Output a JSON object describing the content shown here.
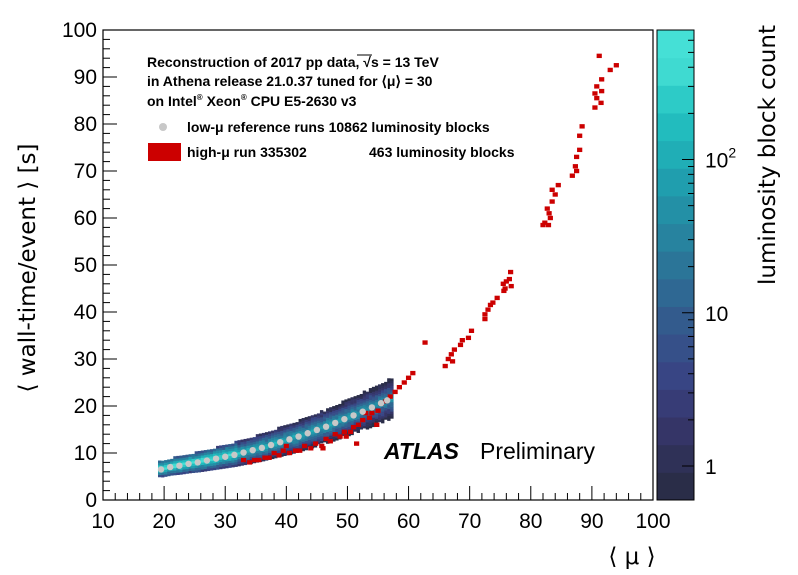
{
  "chart_data": {
    "type": "scatter",
    "title": "",
    "xlabel": "⟨ μ ⟩",
    "ylabel": "⟨ wall-time/event ⟩ [s]",
    "xlim": [
      10,
      100
    ],
    "ylim": [
      0,
      100
    ],
    "x_ticks": [
      "10",
      "20",
      "30",
      "40",
      "50",
      "60",
      "70",
      "80",
      "90",
      "100"
    ],
    "y_ticks": [
      "0",
      "10",
      "20",
      "30",
      "40",
      "50",
      "60",
      "70",
      "80",
      "90",
      "100"
    ],
    "colorbar": {
      "label": "luminosity block count",
      "scale": "log",
      "range": [
        0.6,
        700
      ],
      "tick_labels": [
        {
          "value": 1,
          "text": "1"
        },
        {
          "value": 10,
          "text": "10"
        },
        {
          "value": 100,
          "text": "10",
          "sup": "2"
        }
      ]
    },
    "annotations": {
      "line1_prefix": "Reconstruction of 2017 pp data, ",
      "line1_sqrt": "√s",
      "line1_suffix": " = 13 TeV",
      "line2": "in Athena release 21.0.37 tuned for ⟨μ⟩ = 30",
      "line3_a": "on Intel",
      "line3_reg1": "®",
      "line3_b": " Xeon",
      "line3_reg2": "®",
      "line3_c": " CPU E5-2630 v3",
      "atlas": "ATLAS",
      "preliminary": "Preliminary"
    },
    "legend": [
      {
        "name": "low-μ reference runs",
        "text": "low-μ reference runs 10862 luminosity blocks",
        "marker": "circle",
        "color": "#c8c8c8"
      },
      {
        "name": "high-μ run 335302",
        "text_a": "high-μ run 335302",
        "text_b": "463 luminosity blocks",
        "marker": "box",
        "color": "#cc0000"
      }
    ],
    "series": [
      {
        "name": "high-μ run 335302",
        "color": "#cc0000",
        "points": [
          [
            94.0,
            92.5
          ],
          [
            93.0,
            91.5
          ],
          [
            91.2,
            94.5
          ],
          [
            91.6,
            89.5
          ],
          [
            90.8,
            88.0
          ],
          [
            91.6,
            87.0
          ],
          [
            90.5,
            86.5
          ],
          [
            90.8,
            85.5
          ],
          [
            91.5,
            84.5
          ],
          [
            90.5,
            83.5
          ],
          [
            88.4,
            79.5
          ],
          [
            88.0,
            77.5
          ],
          [
            88.0,
            74.5
          ],
          [
            87.5,
            73.0
          ],
          [
            87.3,
            71.0
          ],
          [
            87.5,
            70.0
          ],
          [
            86.8,
            69.0
          ],
          [
            84.5,
            67.0
          ],
          [
            83.5,
            66.0
          ],
          [
            84.0,
            65.0
          ],
          [
            83.5,
            63.5
          ],
          [
            82.7,
            62.0
          ],
          [
            83.0,
            61.0
          ],
          [
            83.2,
            60.0
          ],
          [
            82.3,
            59.0
          ],
          [
            82.9,
            58.5
          ],
          [
            82.0,
            58.5
          ],
          [
            76.7,
            48.5
          ],
          [
            76.5,
            47.0
          ],
          [
            76.0,
            46.5
          ],
          [
            76.8,
            45.5
          ],
          [
            75.5,
            46.0
          ],
          [
            75.8,
            45.0
          ],
          [
            75.6,
            44.5
          ],
          [
            74.5,
            43.0
          ],
          [
            73.8,
            42.0
          ],
          [
            73.4,
            41.5
          ],
          [
            73.0,
            40.5
          ],
          [
            72.5,
            39.5
          ],
          [
            72.5,
            38.5
          ],
          [
            70.3,
            36.0
          ],
          [
            69.8,
            34.5
          ],
          [
            68.8,
            34.0
          ],
          [
            68.5,
            33.0
          ],
          [
            67.5,
            32.0
          ],
          [
            67.0,
            31.0
          ],
          [
            66.5,
            30.0
          ],
          [
            67.2,
            29.5
          ],
          [
            66.0,
            28.5
          ],
          [
            62.7,
            33.5
          ],
          [
            60.7,
            27.0
          ],
          [
            60.0,
            26.0
          ],
          [
            59.3,
            25.0
          ],
          [
            58.5,
            24.0
          ],
          [
            57.8,
            23.0
          ],
          [
            57.0,
            22.0
          ],
          [
            56.3,
            21.0
          ],
          [
            55.5,
            20.5
          ],
          [
            55.0,
            19.0
          ],
          [
            54.0,
            18.5
          ],
          [
            53.6,
            17.5
          ],
          [
            53.0,
            18.5
          ],
          [
            52.5,
            17.0
          ],
          [
            51.8,
            16.0
          ],
          [
            51.0,
            15.5
          ],
          [
            50.5,
            14.5
          ],
          [
            49.5,
            14.5
          ],
          [
            48.8,
            13.5
          ],
          [
            48.0,
            14.0
          ],
          [
            47.2,
            12.5
          ],
          [
            46.5,
            13.0
          ],
          [
            45.8,
            11.5
          ],
          [
            44.8,
            12.0
          ],
          [
            44.0,
            11.0
          ],
          [
            43.0,
            11.5
          ],
          [
            42.2,
            10.5
          ],
          [
            41.5,
            10.5
          ],
          [
            40.5,
            10.0
          ],
          [
            39.5,
            10.5
          ],
          [
            38.8,
            9.5
          ],
          [
            38.0,
            10.0
          ],
          [
            37.2,
            9.0
          ],
          [
            36.5,
            9.0
          ],
          [
            35.5,
            8.5
          ],
          [
            34.8,
            8.5
          ],
          [
            34.0,
            8.0
          ],
          [
            33.0,
            8.5
          ],
          [
            49.8,
            13.5
          ],
          [
            51.5,
            12.0
          ],
          [
            46.0,
            11.0
          ],
          [
            40.0,
            11.5
          ],
          [
            54.8,
            16.0
          ]
        ]
      },
      {
        "name": "low-μ reference runs",
        "color": "#c8c8c8",
        "points": [
          [
            19.5,
            6.5
          ],
          [
            21.0,
            7.0
          ],
          [
            22.5,
            7.3
          ],
          [
            24.0,
            7.7
          ],
          [
            25.5,
            8.0
          ],
          [
            27.0,
            8.4
          ],
          [
            28.5,
            8.8
          ],
          [
            30.0,
            9.2
          ],
          [
            31.5,
            9.6
          ],
          [
            33.0,
            10.1
          ],
          [
            34.5,
            10.6
          ],
          [
            36.0,
            11.1
          ],
          [
            37.5,
            11.7
          ],
          [
            39.0,
            12.3
          ],
          [
            40.5,
            12.9
          ],
          [
            42.0,
            13.5
          ],
          [
            43.5,
            14.2
          ],
          [
            45.0,
            14.9
          ],
          [
            46.5,
            15.6
          ],
          [
            48.0,
            16.4
          ],
          [
            49.5,
            17.2
          ],
          [
            51.0,
            18.0
          ],
          [
            52.5,
            18.8
          ],
          [
            54.0,
            19.7
          ],
          [
            55.5,
            20.6
          ],
          [
            56.5,
            21.2
          ]
        ]
      }
    ]
  }
}
